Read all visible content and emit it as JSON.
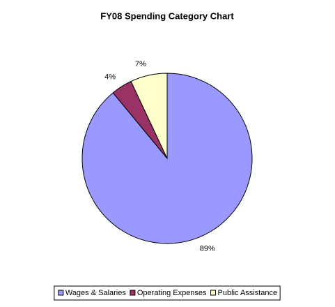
{
  "chart_data": {
    "type": "pie",
    "title": "FY08 Spending Category Chart",
    "categories": [
      "Wages & Salaries",
      "Operating Expenses",
      "Public Assistance"
    ],
    "values": [
      89,
      4,
      7
    ],
    "value_labels": [
      "89%",
      "4%",
      "7%"
    ],
    "colors": [
      "#9999ff",
      "#993366",
      "#ffffcc"
    ],
    "legend": "bottom"
  }
}
